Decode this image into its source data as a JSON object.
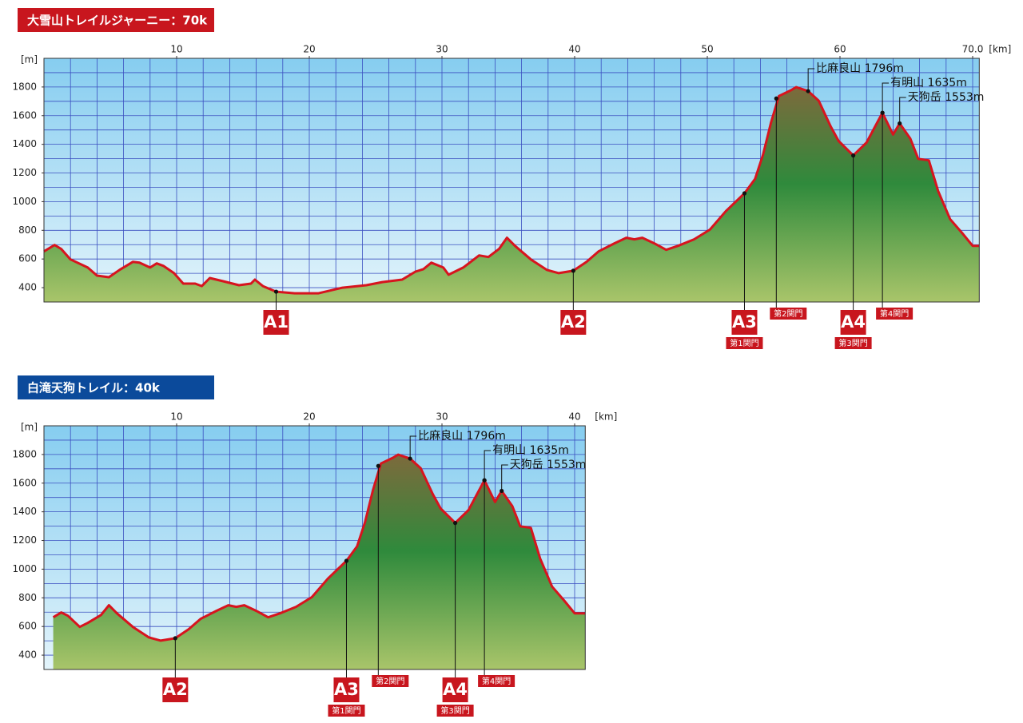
{
  "chart_data": [
    {
      "type": "area",
      "title": "大雪山トレイルジャーニー：70k",
      "title_color": "#c8161e",
      "xlabel": "[km]",
      "ylabel": "[m]",
      "line_color": "#d7141e",
      "grid": true,
      "grid_x_step": 2,
      "grid_y_step": 100,
      "xlim": [
        0,
        70.5
      ],
      "ylim": [
        300,
        2000
      ],
      "xticks": [
        10,
        20,
        30,
        40,
        50,
        60,
        {
          "value": 70,
          "label": "70.0"
        }
      ],
      "yticks": [
        400,
        600,
        800,
        1000,
        1200,
        1400,
        1600,
        1800
      ],
      "x": [
        0,
        0.8,
        1.3,
        2.0,
        3.3,
        4.0,
        4.9,
        5.7,
        6.7,
        7.2,
        8.0,
        8.5,
        9.0,
        9.8,
        10.5,
        11.4,
        11.9,
        12.5,
        13.5,
        14.7,
        15.6,
        15.9,
        16.5,
        17.5,
        18.9,
        20.7,
        22.5,
        24.3,
        25.5,
        27.0,
        28.0,
        28.6,
        29.2,
        30.1,
        30.5,
        31.6,
        32.8,
        33.5,
        34.3,
        34.9,
        35.5,
        36.7,
        37.9,
        38.8,
        39.9,
        40.9,
        41.8,
        43.0,
        43.9,
        44.5,
        45.1,
        46.0,
        46.9,
        47.8,
        49.0,
        50.2,
        51.4,
        52.8,
        53.6,
        54.2,
        54.8,
        55.4,
        56.3,
        56.7,
        57.6,
        58.4,
        59.3,
        59.9,
        61.0,
        62.0,
        63.2,
        64.0,
        64.5,
        65.3,
        65.9,
        66.7,
        67.4,
        68.3,
        69.2,
        70.0,
        70.5
      ],
      "values": [
        653,
        698,
        670,
        597,
        540,
        484,
        473,
        524,
        580,
        574,
        540,
        569,
        552,
        501,
        428,
        428,
        411,
        467,
        445,
        417,
        428,
        456,
        411,
        372,
        361,
        361,
        400,
        417,
        439,
        456,
        512,
        529,
        574,
        540,
        490,
        540,
        625,
        614,
        670,
        748,
        692,
        597,
        524,
        501,
        518,
        580,
        653,
        709,
        748,
        737,
        748,
        709,
        664,
        692,
        737,
        805,
        934,
        1058,
        1159,
        1327,
        1552,
        1737,
        1777,
        1799,
        1771,
        1704,
        1524,
        1423,
        1322,
        1412,
        1620,
        1468,
        1546,
        1440,
        1299,
        1288,
        1074,
        878,
        782,
        692,
        692
      ],
      "stations": [
        {
          "x": 17.5,
          "y": 372,
          "label": "A1"
        },
        {
          "x": 39.9,
          "y": 518,
          "label": "A2"
        },
        {
          "x": 52.8,
          "y": 1058,
          "label": "A3",
          "note": "第1関門"
        },
        {
          "x": 55.2,
          "y": 1720,
          "note": "第2関門"
        },
        {
          "x": 61.0,
          "y": 1322,
          "label": "A4",
          "note": "第3関門"
        },
        {
          "x": 63.2,
          "y": 1620,
          "note": "第4関門"
        }
      ],
      "peaks": [
        {
          "x": 57.6,
          "y": 1771,
          "label": "比麻良山 1796m"
        },
        {
          "x": 63.2,
          "y": 1620,
          "label": "有明山 1635m"
        },
        {
          "x": 64.5,
          "y": 1546,
          "label": "天狗岳 1553m"
        }
      ]
    },
    {
      "type": "area",
      "title": "白滝天狗トレイル：40k",
      "title_color": "#0b4a9b",
      "xlabel": "[km]",
      "ylabel": "[m]",
      "line_color": "#d7141e",
      "grid": true,
      "grid_x_step": 2,
      "grid_y_step": 100,
      "xlim": [
        0,
        40.8
      ],
      "ylim": [
        300,
        2000
      ],
      "xticks": [
        10,
        20,
        30,
        40
      ],
      "yticks": [
        400,
        600,
        800,
        1000,
        1200,
        1400,
        1600,
        1800
      ],
      "x": [
        0.7,
        1.3,
        1.8,
        2.7,
        3.3,
        4.3,
        4.9,
        5.5,
        6.7,
        7.9,
        8.8,
        9.9,
        10.9,
        11.8,
        13.0,
        13.9,
        14.5,
        15.1,
        16.0,
        16.9,
        17.8,
        19.0,
        20.2,
        21.4,
        22.8,
        23.6,
        24.2,
        24.8,
        25.4,
        26.3,
        26.7,
        27.6,
        28.4,
        29.3,
        29.9,
        31.0,
        32.0,
        33.2,
        34.0,
        34.5,
        35.3,
        35.9,
        36.7,
        37.4,
        38.3,
        39.2,
        40.0,
        40.8
      ],
      "values": [
        664,
        698,
        675,
        597,
        625,
        680,
        748,
        692,
        597,
        524,
        501,
        518,
        580,
        653,
        709,
        748,
        737,
        748,
        709,
        664,
        692,
        737,
        805,
        934,
        1058,
        1159,
        1327,
        1552,
        1737,
        1777,
        1799,
        1771,
        1704,
        1524,
        1423,
        1322,
        1412,
        1620,
        1468,
        1546,
        1440,
        1299,
        1288,
        1074,
        878,
        782,
        692,
        692
      ],
      "stations": [
        {
          "x": 9.9,
          "y": 518,
          "label": "A2"
        },
        {
          "x": 22.8,
          "y": 1058,
          "label": "A3",
          "note": "第1関門"
        },
        {
          "x": 25.2,
          "y": 1720,
          "note": "第2関門"
        },
        {
          "x": 31.0,
          "y": 1322,
          "label": "A4",
          "note": "第3関門"
        },
        {
          "x": 33.2,
          "y": 1620,
          "note": "第4関門"
        }
      ],
      "peaks": [
        {
          "x": 27.6,
          "y": 1771,
          "label": "比麻良山 1796m"
        },
        {
          "x": 33.2,
          "y": 1620,
          "label": "有明山 1635m"
        },
        {
          "x": 34.5,
          "y": 1546,
          "label": "天狗岳 1553m"
        }
      ]
    }
  ]
}
